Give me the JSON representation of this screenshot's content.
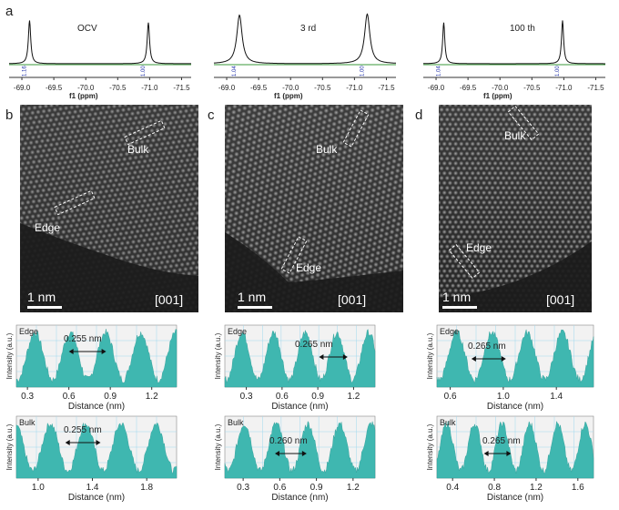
{
  "panel_letters": {
    "a": "a",
    "b": "b",
    "c": "c",
    "d": "d"
  },
  "nmr": {
    "xlabel": "f1 (ppm)",
    "ticks": [
      "-69.0",
      "-69.5",
      "-70.0",
      "-70.5",
      "-71.0",
      "-71.5"
    ],
    "panels": [
      {
        "label": "OCV",
        "int_left": "1.16",
        "int_right": "1.00"
      },
      {
        "label": "3 rd",
        "int_left": "1.04",
        "int_right": "1.00"
      },
      {
        "label": "100 th",
        "int_left": "1.04",
        "int_right": "1.00"
      }
    ]
  },
  "tem": {
    "scale": "1 nm",
    "zone": "[001]",
    "bulk": "Bulk",
    "edge": "Edge"
  },
  "profiles": {
    "ylabel": "Intensity (a.u.)",
    "xlabel": "Distance (nm)",
    "edge_tag": "Edge",
    "bulk_tag": "Bulk",
    "b_edge": {
      "spacing": "0.255 nm",
      "ticks": [
        "0.3",
        "0.6",
        "0.9",
        "1.2"
      ]
    },
    "b_bulk": {
      "spacing": "0.255 nm",
      "ticks": [
        "1.0",
        "1.4",
        "1.8"
      ]
    },
    "c_edge": {
      "spacing": "0.265 nm",
      "ticks": [
        "0.3",
        "0.6",
        "0.9",
        "1.2"
      ]
    },
    "c_bulk": {
      "spacing": "0.260 nm",
      "ticks": [
        "0.3",
        "0.6",
        "0.9",
        "1.2"
      ]
    },
    "d_edge": {
      "spacing": "0.265 nm",
      "ticks": [
        "0.6",
        "1.0",
        "1.4"
      ]
    },
    "d_bulk": {
      "spacing": "0.265 nm",
      "ticks": [
        "0.4",
        "0.8",
        "1.2",
        "1.6"
      ]
    }
  },
  "colors": {
    "profile_fill": "#3fb7b0",
    "grid": "#9fd8ee",
    "nmr_base": "#3a9a3a"
  }
}
